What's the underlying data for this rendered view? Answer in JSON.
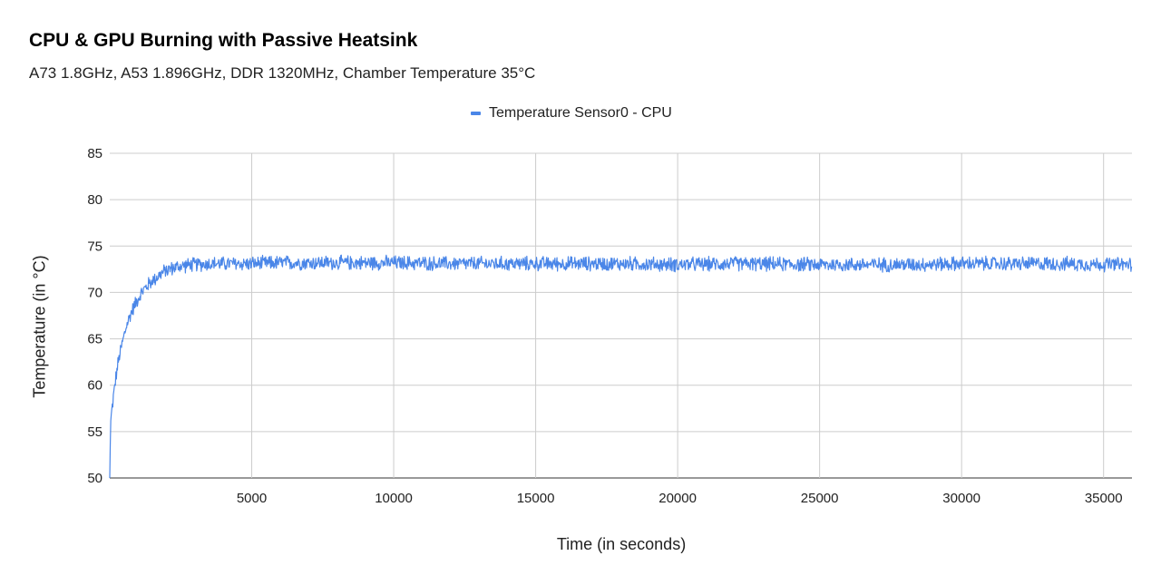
{
  "chart_data": {
    "type": "line",
    "title": "CPU & GPU Burning with Passive Heatsink",
    "subtitle": "A73 1.8GHz, A53 1.896GHz, DDR 1320MHz, Chamber Temperature 35°C",
    "xlabel": "Time (in seconds)",
    "ylabel": "Temperature (in °C)",
    "xlim": [
      0,
      36000
    ],
    "ylim": [
      50,
      85
    ],
    "x_ticks": [
      5000,
      10000,
      15000,
      20000,
      25000,
      30000,
      35000
    ],
    "y_ticks": [
      50,
      55,
      60,
      65,
      70,
      75,
      80,
      85
    ],
    "grid": true,
    "legend_position": "top-center",
    "series": [
      {
        "name": "Temperature Sensor0 - CPU",
        "color": "#4a86e8",
        "x": [
          0,
          30,
          100,
          200,
          300,
          400,
          500,
          600,
          750,
          900,
          1000,
          1200,
          1400,
          1600,
          1800,
          2000,
          2300,
          2600,
          3000,
          3500,
          4000,
          5000,
          6000,
          8000,
          10000,
          12000,
          15000,
          18000,
          20000,
          22000,
          25000,
          28000,
          30000,
          33000,
          36000
        ],
        "y": [
          50,
          56,
          58,
          60.5,
          62.5,
          64,
          65.3,
          66.5,
          67.8,
          68.8,
          69.4,
          70.3,
          71,
          71.5,
          72,
          72.4,
          72.7,
          72.9,
          73,
          73.1,
          73.1,
          73.1,
          73.2,
          73.2,
          73.2,
          73.1,
          73.1,
          73.1,
          73.0,
          73.1,
          73.0,
          73.0,
          73.1,
          73.1,
          73.0
        ],
        "noise_amplitude": 0.9
      }
    ]
  }
}
